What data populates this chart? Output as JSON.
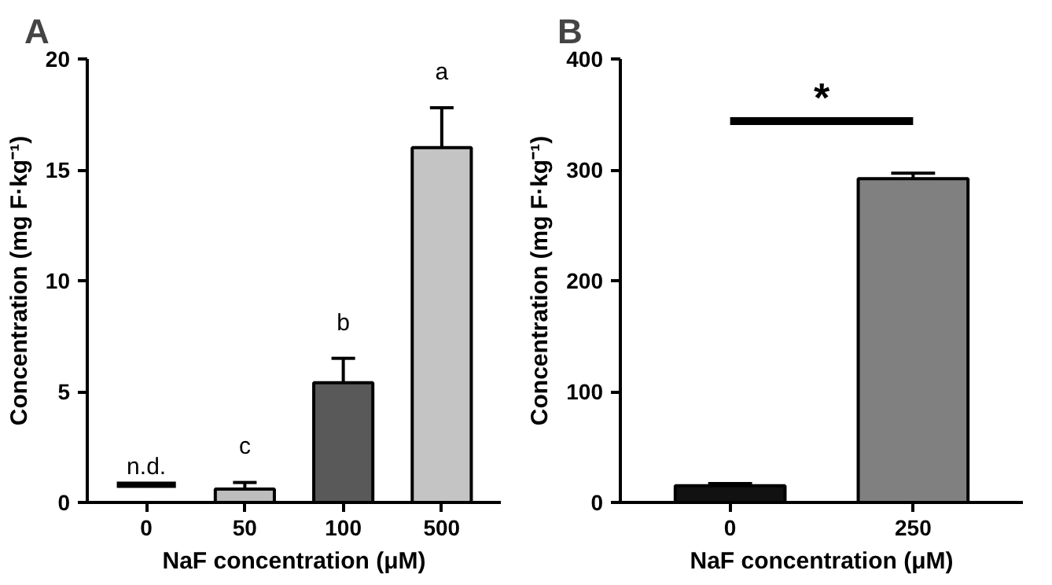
{
  "chart_data": [
    {
      "type": "bar",
      "title": "A",
      "xlabel": "NaF concentration (μM)",
      "ylabel": "Concentration (mg F·kg⁻¹)",
      "categories": [
        "0",
        "50",
        "100",
        "500"
      ],
      "values": [
        null,
        0.6,
        5.4,
        16.0
      ],
      "colors": [
        "#111111",
        "#bdbdbd",
        "#595959",
        "#c4c4c4"
      ],
      "errors": [
        null,
        [
          0.6,
          0.9
        ],
        [
          5.4,
          6.5
        ],
        [
          16.0,
          17.8
        ]
      ],
      "ylim": [
        0,
        20
      ],
      "yticks": [
        0,
        5,
        10,
        15,
        20
      ],
      "grid": false,
      "annotations": [
        "n.d.",
        "c",
        "b",
        "a"
      ]
    },
    {
      "type": "bar",
      "title": "B",
      "xlabel": "NaF concentration (μM)",
      "ylabel": "Concentration (mg F·kg⁻¹)",
      "categories": [
        "0",
        "250"
      ],
      "values": [
        15,
        292
      ],
      "colors": [
        "#111111",
        "#808080"
      ],
      "errors": [
        [
          15,
          17
        ],
        [
          292,
          297
        ]
      ],
      "ylim": [
        0,
        400
      ],
      "yticks": [
        0,
        100,
        200,
        300,
        400
      ],
      "grid": false,
      "annotations": [
        "*"
      ]
    }
  ]
}
